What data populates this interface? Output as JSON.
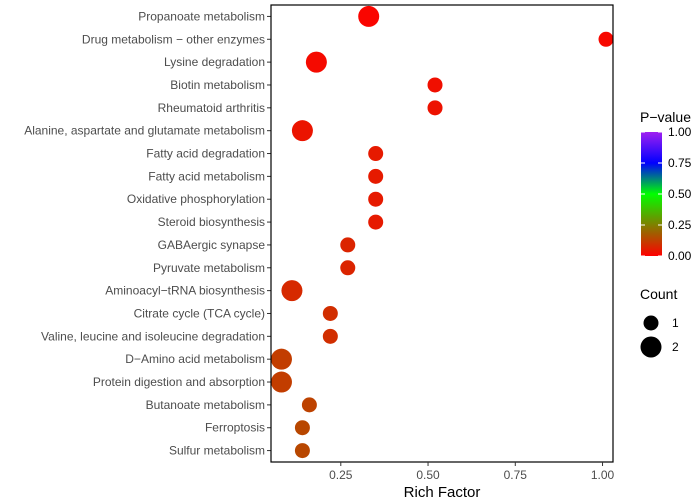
{
  "chart_data": {
    "type": "scatter",
    "subtype": "bubble",
    "xlabel": "Rich Factor",
    "ylabel": "",
    "xlim": [
      0.05,
      1.03
    ],
    "x_ticks": [
      0.25,
      0.5,
      0.75,
      1.0
    ],
    "x_tick_labels": [
      "0.25",
      "0.50",
      "0.75",
      "1.00"
    ],
    "points": [
      {
        "pathway": "Propanoate metabolism",
        "rich_factor": 0.33,
        "count": 2,
        "p_value": 0.01
      },
      {
        "pathway": "Drug metabolism − other enzymes",
        "rich_factor": 1.01,
        "count": 1,
        "p_value": 0.015
      },
      {
        "pathway": "Lysine degradation",
        "rich_factor": 0.18,
        "count": 2,
        "p_value": 0.02
      },
      {
        "pathway": "Biotin metabolism",
        "rich_factor": 0.52,
        "count": 1,
        "p_value": 0.03
      },
      {
        "pathway": "Rheumatoid arthritis",
        "rich_factor": 0.52,
        "count": 1,
        "p_value": 0.035
      },
      {
        "pathway": "Alanine, aspartate and glutamate metabolism",
        "rich_factor": 0.14,
        "count": 2,
        "p_value": 0.04
      },
      {
        "pathway": "Fatty acid degradation",
        "rich_factor": 0.35,
        "count": 1,
        "p_value": 0.05
      },
      {
        "pathway": "Fatty acid metabolism",
        "rich_factor": 0.35,
        "count": 1,
        "p_value": 0.05
      },
      {
        "pathway": "Oxidative phosphorylation",
        "rich_factor": 0.35,
        "count": 1,
        "p_value": 0.05
      },
      {
        "pathway": "Steroid biosynthesis",
        "rich_factor": 0.35,
        "count": 1,
        "p_value": 0.05
      },
      {
        "pathway": "GABAergic synapse",
        "rich_factor": 0.27,
        "count": 1,
        "p_value": 0.07
      },
      {
        "pathway": "Pyruvate metabolism",
        "rich_factor": 0.27,
        "count": 1,
        "p_value": 0.07
      },
      {
        "pathway": "Aminoacyl−tRNA biosynthesis",
        "rich_factor": 0.11,
        "count": 2,
        "p_value": 0.08
      },
      {
        "pathway": "Citrate cycle (TCA cycle)",
        "rich_factor": 0.22,
        "count": 1,
        "p_value": 0.09
      },
      {
        "pathway": "Valine, leucine and isoleucine degradation",
        "rich_factor": 0.22,
        "count": 1,
        "p_value": 0.09
      },
      {
        "pathway": "D−Amino acid metabolism",
        "rich_factor": 0.08,
        "count": 2,
        "p_value": 0.12
      },
      {
        "pathway": "Protein digestion and absorption",
        "rich_factor": 0.08,
        "count": 2,
        "p_value": 0.12
      },
      {
        "pathway": "Butanoate metabolism",
        "rich_factor": 0.16,
        "count": 1,
        "p_value": 0.13
      },
      {
        "pathway": "Ferroptosis",
        "rich_factor": 0.14,
        "count": 1,
        "p_value": 0.14
      },
      {
        "pathway": "Sulfur metabolism",
        "rich_factor": 0.14,
        "count": 1,
        "p_value": 0.14
      }
    ],
    "color_legend": {
      "title": "P−value",
      "range": [
        0,
        1
      ],
      "ticks": [
        1.0,
        0.75,
        0.5,
        0.25,
        0.0
      ],
      "tick_labels": [
        "1.00",
        "0.75",
        "0.50",
        "0.25",
        "0.00"
      ],
      "gradient": [
        "#ff0000",
        "#00ff00",
        "#0000ff",
        "#a020f0"
      ],
      "gradient_stops": [
        0,
        0.5,
        0.75,
        1
      ]
    },
    "size_legend": {
      "title": "Count",
      "entries": [
        {
          "label": "1",
          "count": 1
        },
        {
          "label": "2",
          "count": 2
        }
      ]
    },
    "panel_border": true,
    "grid": false
  }
}
